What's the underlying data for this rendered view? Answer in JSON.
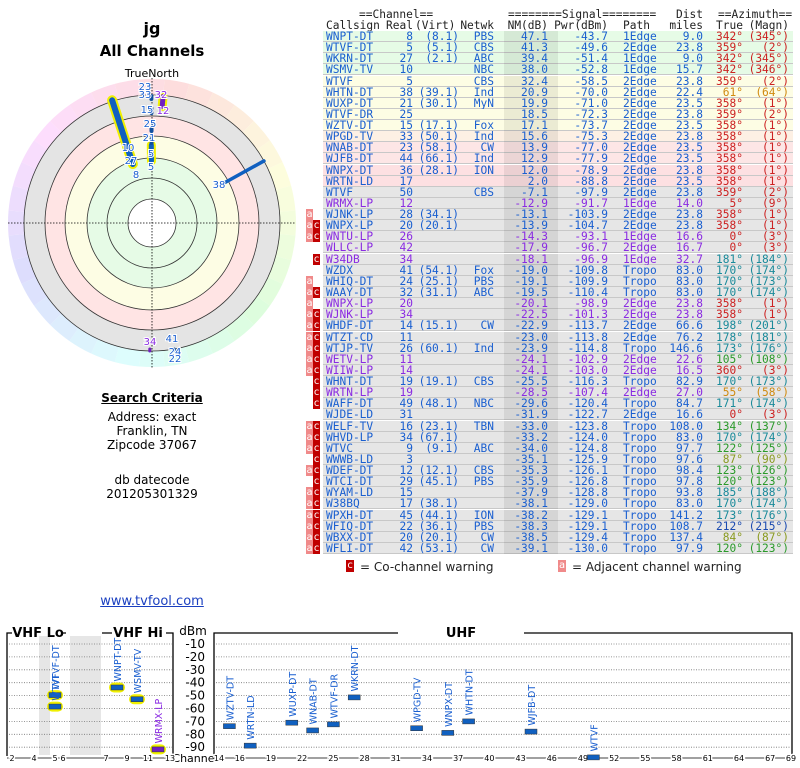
{
  "polar": {
    "title": "jg",
    "subtitle": "All Channels",
    "north_label": "TrueNorth",
    "labels": [
      "23",
      "33",
      "32",
      "15",
      "12",
      "25",
      "21",
      "5",
      "5",
      "10",
      "27",
      "8",
      "38",
      "34",
      "41",
      "24",
      "22"
    ]
  },
  "criteria": {
    "heading": "Search Criteria",
    "lines": [
      "Address: exact",
      "Franklin, TN",
      "Zipcode 37067",
      "",
      "db datecode",
      "201205301329"
    ]
  },
  "link": "www.tvfool.com",
  "table": {
    "group_headers": {
      "channel": "==Channel==",
      "signal": "========Signal========",
      "dist": "Dist",
      "azimuth": "==Azimuth=="
    },
    "columns": [
      "Callsign",
      "Real",
      "(Virt)",
      "Netwk",
      "NM(dB)",
      "Pwr(dBm)",
      "Path",
      "miles",
      "True",
      "(Magn)"
    ],
    "palette": {
      "green": "#e6fbe6",
      "yellow": "#fdfde4",
      "peach": "#fdf0e4",
      "pink": "#fde6e6",
      "pink2": "#fde0e2",
      "gray": "#e6e6e6",
      "blue": "#1a5fd0",
      "purple": "#8a2be2",
      "az_red": "#cc2222",
      "az_orange": "#d08a10",
      "az_teal": "#1a8a9a",
      "az_green": "#2a9a2a",
      "az_olive": "#8a9a20",
      "az_navy": "#1a4ab0"
    },
    "rows": [
      {
        "f": "",
        "c": [
          "WNPT-DT",
          "8",
          "(8.1)",
          "PBS",
          "47.1",
          "-43.7",
          "1Edge",
          "9.0",
          "342°",
          "(345°)"
        ],
        "bg": "green",
        "tc": "blue",
        "az": "az_red"
      },
      {
        "f": "",
        "c": [
          "WTVF-DT",
          "5",
          "(5.1)",
          "CBS",
          "41.3",
          "-49.6",
          "2Edge",
          "23.8",
          "359°",
          "(2°)"
        ],
        "bg": "green",
        "tc": "blue",
        "az": "az_red"
      },
      {
        "f": "",
        "c": [
          "WKRN-DT",
          "27",
          "(2.1)",
          "ABC",
          "39.4",
          "-51.4",
          "1Edge",
          "9.0",
          "342°",
          "(345°)"
        ],
        "bg": "green",
        "tc": "blue",
        "az": "az_red"
      },
      {
        "f": "",
        "c": [
          "WSMV-TV",
          "10",
          "",
          "NBC",
          "38.0",
          "-52.8",
          "1Edge",
          "15.7",
          "342°",
          "(346°)"
        ],
        "bg": "green",
        "tc": "blue",
        "az": "az_red"
      },
      {
        "f": "",
        "c": [
          "WTVF",
          "5",
          "",
          "CBS",
          "32.4",
          "-58.5",
          "2Edge",
          "23.8",
          "359°",
          "(2°)"
        ],
        "bg": "yellow",
        "tc": "blue",
        "az": "az_red"
      },
      {
        "f": "",
        "c": [
          "WHTN-DT",
          "38",
          "(39.1)",
          "Ind",
          "20.9",
          "-70.0",
          "2Edge",
          "22.4",
          "61°",
          "(64°)"
        ],
        "bg": "yellow",
        "tc": "blue",
        "az": "az_orange"
      },
      {
        "f": "",
        "c": [
          "WUXP-DT",
          "21",
          "(30.1)",
          "MyN",
          "19.9",
          "-71.0",
          "2Edge",
          "23.5",
          "358°",
          "(1°)"
        ],
        "bg": "yellow",
        "tc": "blue",
        "az": "az_red"
      },
      {
        "f": "",
        "c": [
          "WTVF-DR",
          "25",
          "",
          "",
          "18.5",
          "-72.3",
          "2Edge",
          "23.8",
          "359°",
          "(2°)"
        ],
        "bg": "yellow",
        "tc": "blue",
        "az": "az_red"
      },
      {
        "f": "",
        "c": [
          "WZTV-DT",
          "15",
          "(17.1)",
          "Fox",
          "17.1",
          "-73.7",
          "2Edge",
          "23.5",
          "358°",
          "(1°)"
        ],
        "bg": "yellow",
        "tc": "blue",
        "az": "az_red"
      },
      {
        "f": "",
        "c": [
          "WPGD-TV",
          "33",
          "(50.1)",
          "Ind",
          "15.6",
          "-75.3",
          "2Edge",
          "23.8",
          "358°",
          "(1°)"
        ],
        "bg": "peach",
        "tc": "blue",
        "az": "az_red"
      },
      {
        "f": "",
        "c": [
          "WNAB-DT",
          "23",
          "(58.1)",
          "CW",
          "13.9",
          "-77.0",
          "2Edge",
          "23.5",
          "358°",
          "(1°)"
        ],
        "bg": "pink",
        "tc": "blue",
        "az": "az_red"
      },
      {
        "f": "",
        "c": [
          "WJFB-DT",
          "44",
          "(66.1)",
          "Ind",
          "12.9",
          "-77.9",
          "2Edge",
          "23.5",
          "358°",
          "(1°)"
        ],
        "bg": "pink",
        "tc": "blue",
        "az": "az_red"
      },
      {
        "f": "",
        "c": [
          "WNPX-DT",
          "36",
          "(28.1)",
          "ION",
          "12.0",
          "-78.9",
          "2Edge",
          "23.8",
          "358°",
          "(1°)"
        ],
        "bg": "pink2",
        "tc": "blue",
        "az": "az_red"
      },
      {
        "f": "",
        "c": [
          "WRTN-LD",
          "17",
          "",
          "",
          "2.0",
          "-88.8",
          "2Edge",
          "23.5",
          "358°",
          "(1°)"
        ],
        "bg": "pink2",
        "tc": "blue",
        "az": "az_red"
      },
      {
        "f": "",
        "c": [
          "WTVF",
          "50",
          "",
          "CBS",
          "-7.1",
          "-97.9",
          "2Edge",
          "23.8",
          "359°",
          "(2°)"
        ],
        "bg": "gray",
        "tc": "blue",
        "az": "az_red"
      },
      {
        "f": "",
        "c": [
          "WRMX-LP",
          "12",
          "",
          "",
          "-12.9",
          "-91.7",
          "1Edge",
          "14.0",
          "5°",
          "(9°)"
        ],
        "bg": "gray",
        "tc": "purple",
        "az": "az_red"
      },
      {
        "f": "a",
        "c": [
          "WJNK-LP",
          "28",
          "(34.1)",
          "",
          "-13.1",
          "-103.9",
          "2Edge",
          "23.8",
          "358°",
          "(1°)"
        ],
        "bg": "gray",
        "tc": "blue",
        "az": "az_red"
      },
      {
        "f": "ac",
        "c": [
          "WNPX-LP",
          "20",
          "(20.1)",
          "",
          "-13.9",
          "-104.7",
          "2Edge",
          "23.8",
          "358°",
          "(1°)"
        ],
        "bg": "gray",
        "tc": "blue",
        "az": "az_red"
      },
      {
        "f": "ac",
        "c": [
          "WNTU-LP",
          "26",
          "",
          "",
          "-14.3",
          "-93.1",
          "1Edge",
          "16.6",
          "0°",
          "(3°)"
        ],
        "bg": "gray",
        "tc": "purple",
        "az": "az_red"
      },
      {
        "f": "",
        "c": [
          "WLLC-LP",
          "42",
          "",
          "",
          "-17.9",
          "-96.7",
          "2Edge",
          "16.7",
          "0°",
          "(3°)"
        ],
        "bg": "gray",
        "tc": "purple",
        "az": "az_red"
      },
      {
        "f": "c",
        "c": [
          "W34DB",
          "34",
          "",
          "",
          "-18.1",
          "-96.9",
          "1Edge",
          "32.7",
          "181°",
          "(184°)"
        ],
        "bg": "gray",
        "tc": "purple",
        "az": "az_teal"
      },
      {
        "f": "",
        "c": [
          "WZDX",
          "41",
          "(54.1)",
          "Fox",
          "-19.0",
          "-109.8",
          "Tropo",
          "83.0",
          "170°",
          "(174°)"
        ],
        "bg": "gray",
        "tc": "blue",
        "az": "az_teal"
      },
      {
        "f": "a",
        "c": [
          "WHIQ-DT",
          "24",
          "(25.1)",
          "PBS",
          "-19.1",
          "-109.9",
          "Tropo",
          "83.0",
          "170°",
          "(173°)"
        ],
        "bg": "gray",
        "tc": "blue",
        "az": "az_teal"
      },
      {
        "f": "ac",
        "c": [
          "WAAY-DT",
          "32",
          "(31.1)",
          "ABC",
          "-19.5",
          "-110.4",
          "Tropo",
          "83.0",
          "170°",
          "(174°)"
        ],
        "bg": "gray",
        "tc": "blue",
        "az": "az_teal"
      },
      {
        "f": "a",
        "c": [
          "WNPX-LP",
          "20",
          "",
          "",
          "-20.1",
          "-98.9",
          "2Edge",
          "23.8",
          "358°",
          "(1°)"
        ],
        "bg": "gray",
        "tc": "purple",
        "az": "az_red"
      },
      {
        "f": "ac",
        "c": [
          "WJNK-LP",
          "34",
          "",
          "",
          "-22.5",
          "-101.3",
          "2Edge",
          "23.8",
          "358°",
          "(1°)"
        ],
        "bg": "gray",
        "tc": "purple",
        "az": "az_red"
      },
      {
        "f": "ac",
        "c": [
          "WHDF-DT",
          "14",
          "(15.1)",
          "CW",
          "-22.9",
          "-113.7",
          "2Edge",
          "66.6",
          "198°",
          "(201°)"
        ],
        "bg": "gray",
        "tc": "blue",
        "az": "az_teal"
      },
      {
        "f": "ac",
        "c": [
          "WTZT-CD",
          "11",
          "",
          "",
          "-23.0",
          "-113.8",
          "2Edge",
          "76.2",
          "178°",
          "(181°)"
        ],
        "bg": "gray",
        "tc": "blue",
        "az": "az_teal"
      },
      {
        "f": "ac",
        "c": [
          "WTJP-TV",
          "26",
          "(60.1)",
          "Ind",
          "-23.9",
          "-114.8",
          "Tropo",
          "146.6",
          "173°",
          "(176°)"
        ],
        "bg": "gray",
        "tc": "blue",
        "az": "az_teal"
      },
      {
        "f": "ac",
        "c": [
          "WETV-LP",
          "11",
          "",
          "",
          "-24.1",
          "-102.9",
          "2Edge",
          "22.6",
          "105°",
          "(108°)"
        ],
        "bg": "gray",
        "tc": "purple",
        "az": "az_green"
      },
      {
        "f": "ac",
        "c": [
          "WIIW-LP",
          "14",
          "",
          "",
          "-24.1",
          "-103.0",
          "2Edge",
          "16.5",
          "360°",
          "(3°)"
        ],
        "bg": "gray",
        "tc": "purple",
        "az": "az_red"
      },
      {
        "f": "c",
        "c": [
          "WHNT-DT",
          "19",
          "(19.1)",
          "CBS",
          "-25.5",
          "-116.3",
          "Tropo",
          "82.9",
          "170°",
          "(173°)"
        ],
        "bg": "gray",
        "tc": "blue",
        "az": "az_teal"
      },
      {
        "f": "c",
        "c": [
          "WRTN-LP",
          "19",
          "",
          "",
          "-28.5",
          "-107.4",
          "2Edge",
          "27.0",
          "55°",
          "(58°)"
        ],
        "bg": "gray",
        "tc": "purple",
        "az": "az_orange"
      },
      {
        "f": "c",
        "c": [
          "WAFF-DT",
          "49",
          "(48.1)",
          "NBC",
          "-29.6",
          "-120.4",
          "Tropo",
          "84.7",
          "171°",
          "(174°)"
        ],
        "bg": "gray",
        "tc": "blue",
        "az": "az_teal"
      },
      {
        "f": "",
        "c": [
          "WJDE-LD",
          "31",
          "",
          "",
          "-31.9",
          "-122.7",
          "2Edge",
          "16.6",
          "0°",
          "(3°)"
        ],
        "bg": "gray",
        "tc": "blue",
        "az": "az_red"
      },
      {
        "f": "ac",
        "c": [
          "WELF-TV",
          "16",
          "(23.1)",
          "TBN",
          "-33.0",
          "-123.8",
          "Tropo",
          "108.0",
          "134°",
          "(137°)"
        ],
        "bg": "gray",
        "tc": "blue",
        "az": "az_green"
      },
      {
        "f": "ac",
        "c": [
          "WHVD-LP",
          "34",
          "(67.1)",
          "",
          "-33.2",
          "-124.0",
          "Tropo",
          "83.0",
          "170°",
          "(174°)"
        ],
        "bg": "gray",
        "tc": "blue",
        "az": "az_teal"
      },
      {
        "f": "ac",
        "c": [
          "WTVC",
          "9",
          "(9.1)",
          "ABC",
          "-34.0",
          "-124.8",
          "Tropo",
          "97.7",
          "122°",
          "(125°)"
        ],
        "bg": "gray",
        "tc": "blue",
        "az": "az_green"
      },
      {
        "f": "c",
        "c": [
          "WWWB-LD",
          "3",
          "",
          "",
          "-35.1",
          "-125.9",
          "Tropo",
          "97.6",
          "87°",
          "(90°)"
        ],
        "bg": "gray",
        "tc": "blue",
        "az": "az_olive"
      },
      {
        "f": "ac",
        "c": [
          "WDEF-DT",
          "12",
          "(12.1)",
          "CBS",
          "-35.3",
          "-126.1",
          "Tropo",
          "98.4",
          "123°",
          "(126°)"
        ],
        "bg": "gray",
        "tc": "blue",
        "az": "az_green"
      },
      {
        "f": "c",
        "c": [
          "WTCI-DT",
          "29",
          "(45.1)",
          "PBS",
          "-35.9",
          "-126.8",
          "Tropo",
          "97.8",
          "120°",
          "(123°)"
        ],
        "bg": "gray",
        "tc": "blue",
        "az": "az_green"
      },
      {
        "f": "ac",
        "c": [
          "WYAM-LD",
          "15",
          "",
          "",
          "-37.9",
          "-128.8",
          "Tropo",
          "93.8",
          "185°",
          "(188°)"
        ],
        "bg": "gray",
        "tc": "blue",
        "az": "az_teal"
      },
      {
        "f": "ac",
        "c": [
          "W38BQ",
          "17",
          "(38.1)",
          "",
          "-38.1",
          "-129.0",
          "Tropo",
          "83.0",
          "170°",
          "(174°)"
        ],
        "bg": "gray",
        "tc": "blue",
        "az": "az_teal"
      },
      {
        "f": "ac",
        "c": [
          "WPXH-DT",
          "45",
          "(44.1)",
          "ION",
          "-38.2",
          "-129.1",
          "Tropo",
          "141.2",
          "173°",
          "(176°)"
        ],
        "bg": "gray",
        "tc": "blue",
        "az": "az_teal"
      },
      {
        "f": "ac",
        "c": [
          "WFIQ-DT",
          "22",
          "(36.1)",
          "PBS",
          "-38.3",
          "-129.1",
          "Tropo",
          "108.7",
          "212°",
          "(215°)"
        ],
        "bg": "gray",
        "tc": "blue",
        "az": "az_navy"
      },
      {
        "f": "ac",
        "c": [
          "WBXX-DT",
          "20",
          "(20.1)",
          "CW",
          "-38.5",
          "-129.4",
          "Tropo",
          "137.4",
          "84°",
          "(87°)"
        ],
        "bg": "gray",
        "tc": "blue",
        "az": "az_olive"
      },
      {
        "f": "ac",
        "c": [
          "WFLI-DT",
          "42",
          "(53.1)",
          "CW",
          "-39.1",
          "-130.0",
          "Tropo",
          "97.9",
          "120°",
          "(123°)"
        ],
        "bg": "gray",
        "tc": "blue",
        "az": "az_green"
      }
    ],
    "legend": {
      "co": "= Co-channel warning",
      "adj": "= Adjacent channel warning",
      "co_flag": "c",
      "adj_flag": "a"
    }
  },
  "spectrum": {
    "vhf_lo": "VHF Lo",
    "vhf_hi": "VHF Hi",
    "uhf": "UHF",
    "unit": "dBm",
    "channel_label": "Channel",
    "y_ticks": [
      "-10",
      "-20",
      "-30",
      "-40",
      "-50",
      "-60",
      "-70",
      "-80",
      "-90"
    ],
    "vhf_ticks": [
      "2",
      "4",
      "5",
      "6",
      "7",
      "9",
      "11",
      "13"
    ],
    "uhf_ticks": [
      "14",
      "16",
      "19",
      "22",
      "25",
      "28",
      "31",
      "34",
      "37",
      "40",
      "43",
      "46",
      "49",
      "52",
      "55",
      "58",
      "61",
      "64",
      "67",
      "69"
    ],
    "stations": [
      {
        "name": "WTVF-DT",
        "ch": 5,
        "dbm": -49.6,
        "strong": true
      },
      {
        "name": "WTVF",
        "ch": 5,
        "dbm": -58.5,
        "strong": true
      },
      {
        "name": "WNPT-DT",
        "ch": 8,
        "dbm": -43.7,
        "strong": true
      },
      {
        "name": "WSMV-TV",
        "ch": 10,
        "dbm": -52.8,
        "strong": true
      },
      {
        "name": "WRMX-LP",
        "ch": 12,
        "dbm": -91.7,
        "strong": true,
        "lp": true
      },
      {
        "name": "WZTV-DT",
        "ch": 15,
        "dbm": -73.7
      },
      {
        "name": "WRTN-LD",
        "ch": 17,
        "dbm": -88.8
      },
      {
        "name": "WUXP-DT",
        "ch": 21,
        "dbm": -71.0
      },
      {
        "name": "WNAB-DT",
        "ch": 23,
        "dbm": -77.0
      },
      {
        "name": "WTVF-DR",
        "ch": 25,
        "dbm": -72.3
      },
      {
        "name": "WKRN-DT",
        "ch": 27,
        "dbm": -51.4
      },
      {
        "name": "WPGD-TV",
        "ch": 33,
        "dbm": -75.3
      },
      {
        "name": "WNPX-DT",
        "ch": 36,
        "dbm": -78.9
      },
      {
        "name": "WHTN-DT",
        "ch": 38,
        "dbm": -70.0
      },
      {
        "name": "WJFB-DT",
        "ch": 44,
        "dbm": -77.9
      },
      {
        "name": "WTVF",
        "ch": 50,
        "dbm": -97.9
      }
    ]
  }
}
